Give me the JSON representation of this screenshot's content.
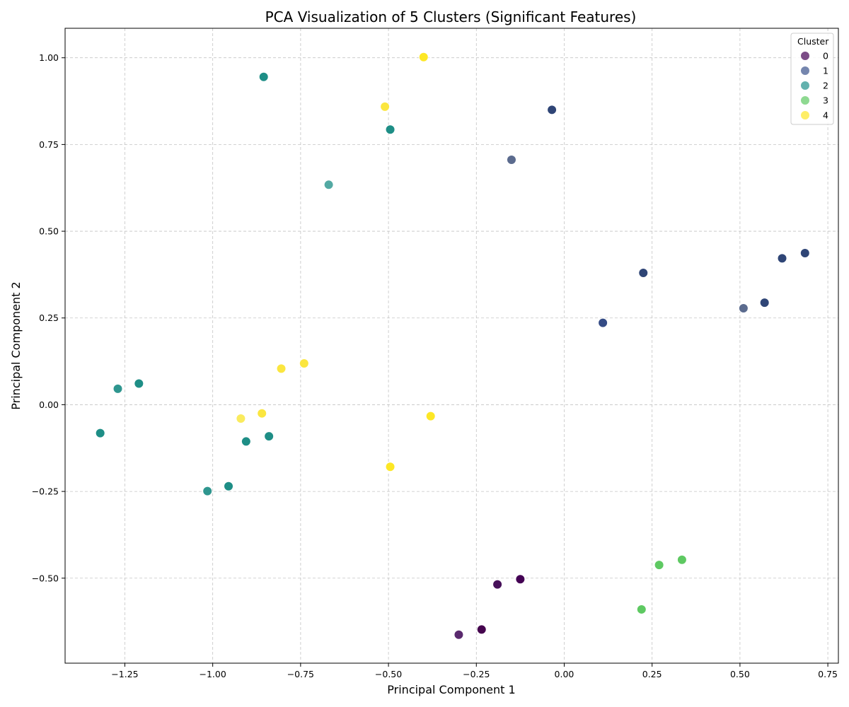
{
  "chart_data": {
    "type": "scatter",
    "title": "PCA Visualization of 5 Clusters (Significant Features)",
    "xlabel": "Principal Component 1",
    "ylabel": "Principal Component 2",
    "xlim": [
      -1.42,
      0.78
    ],
    "ylim": [
      -0.745,
      1.085
    ],
    "xticks": [
      -1.25,
      -1.0,
      -0.75,
      -0.5,
      -0.25,
      0.0,
      0.25,
      0.5,
      0.75
    ],
    "xtick_labels": [
      "−1.25",
      "−1.00",
      "−0.75",
      "−0.50",
      "−0.25",
      "0.00",
      "0.25",
      "0.50",
      "0.75"
    ],
    "yticks": [
      -0.5,
      -0.25,
      0.0,
      0.25,
      0.5,
      0.75,
      1.0
    ],
    "ytick_labels": [
      "−0.50",
      "−0.25",
      "0.00",
      "0.25",
      "0.50",
      "0.75",
      "1.00"
    ],
    "grid": true,
    "legend": {
      "title": "Cluster",
      "placement": "top-right",
      "entries": [
        {
          "label": "0",
          "color": "#440154"
        },
        {
          "label": "1",
          "color": "#3b528b"
        },
        {
          "label": "2",
          "color": "#21918c"
        },
        {
          "label": "3",
          "color": "#5ec962"
        },
        {
          "label": "4",
          "color": "#fde725"
        }
      ]
    },
    "series": [
      {
        "name": "0",
        "color": "#440154",
        "points": [
          {
            "x": -0.3,
            "y": -0.663,
            "color": "#5a2a6e"
          },
          {
            "x": -0.235,
            "y": -0.648,
            "color": "#45054e"
          },
          {
            "x": -0.19,
            "y": -0.518,
            "color": "#47115a"
          },
          {
            "x": -0.125,
            "y": -0.503,
            "color": "#440154"
          }
        ]
      },
      {
        "name": "1",
        "color": "#3b528b",
        "points": [
          {
            "x": -0.035,
            "y": 0.85,
            "color": "#2f4576"
          },
          {
            "x": -0.15,
            "y": 0.706,
            "color": "#5b6b8e"
          },
          {
            "x": 0.225,
            "y": 0.38,
            "color": "#2f4576"
          },
          {
            "x": 0.11,
            "y": 0.236,
            "color": "#344b85"
          },
          {
            "x": 0.51,
            "y": 0.278,
            "color": "#5b6b8e"
          },
          {
            "x": 0.57,
            "y": 0.294,
            "color": "#2f4576"
          },
          {
            "x": 0.62,
            "y": 0.422,
            "color": "#2f4576"
          },
          {
            "x": 0.685,
            "y": 0.437,
            "color": "#2f4576"
          }
        ]
      },
      {
        "name": "2",
        "color": "#21918c",
        "points": [
          {
            "x": -0.855,
            "y": 0.945,
            "color": "#1e8e86"
          },
          {
            "x": -0.495,
            "y": 0.793,
            "color": "#1e8e86"
          },
          {
            "x": -0.67,
            "y": 0.634,
            "color": "#53a9a3"
          },
          {
            "x": -1.21,
            "y": 0.061,
            "color": "#1e8e86"
          },
          {
            "x": -1.27,
            "y": 0.046,
            "color": "#2f968f"
          },
          {
            "x": -1.32,
            "y": -0.082,
            "color": "#1e8e86"
          },
          {
            "x": -0.905,
            "y": -0.106,
            "color": "#1e8e86"
          },
          {
            "x": -0.84,
            "y": -0.091,
            "color": "#1e8e86"
          },
          {
            "x": -0.955,
            "y": -0.235,
            "color": "#1e8e86"
          },
          {
            "x": -1.015,
            "y": -0.249,
            "color": "#2f968f"
          }
        ]
      },
      {
        "name": "3",
        "color": "#5ec962",
        "points": [
          {
            "x": 0.335,
            "y": -0.447,
            "color": "#5ec962"
          },
          {
            "x": 0.27,
            "y": -0.462,
            "color": "#5ec962"
          },
          {
            "x": 0.22,
            "y": -0.59,
            "color": "#5ec962"
          }
        ]
      },
      {
        "name": "4",
        "color": "#fde725",
        "points": [
          {
            "x": -0.4,
            "y": 1.002,
            "color": "#fde725"
          },
          {
            "x": -0.51,
            "y": 0.859,
            "color": "#fbe63f"
          },
          {
            "x": -0.74,
            "y": 0.119,
            "color": "#fbe63f"
          },
          {
            "x": -0.805,
            "y": 0.104,
            "color": "#fbe63f"
          },
          {
            "x": -0.86,
            "y": -0.025,
            "color": "#fbe63f"
          },
          {
            "x": -0.92,
            "y": -0.04,
            "color": "#faeb5e"
          },
          {
            "x": -0.38,
            "y": -0.033,
            "color": "#fde725"
          },
          {
            "x": -0.495,
            "y": -0.179,
            "color": "#fde725"
          }
        ]
      }
    ]
  }
}
